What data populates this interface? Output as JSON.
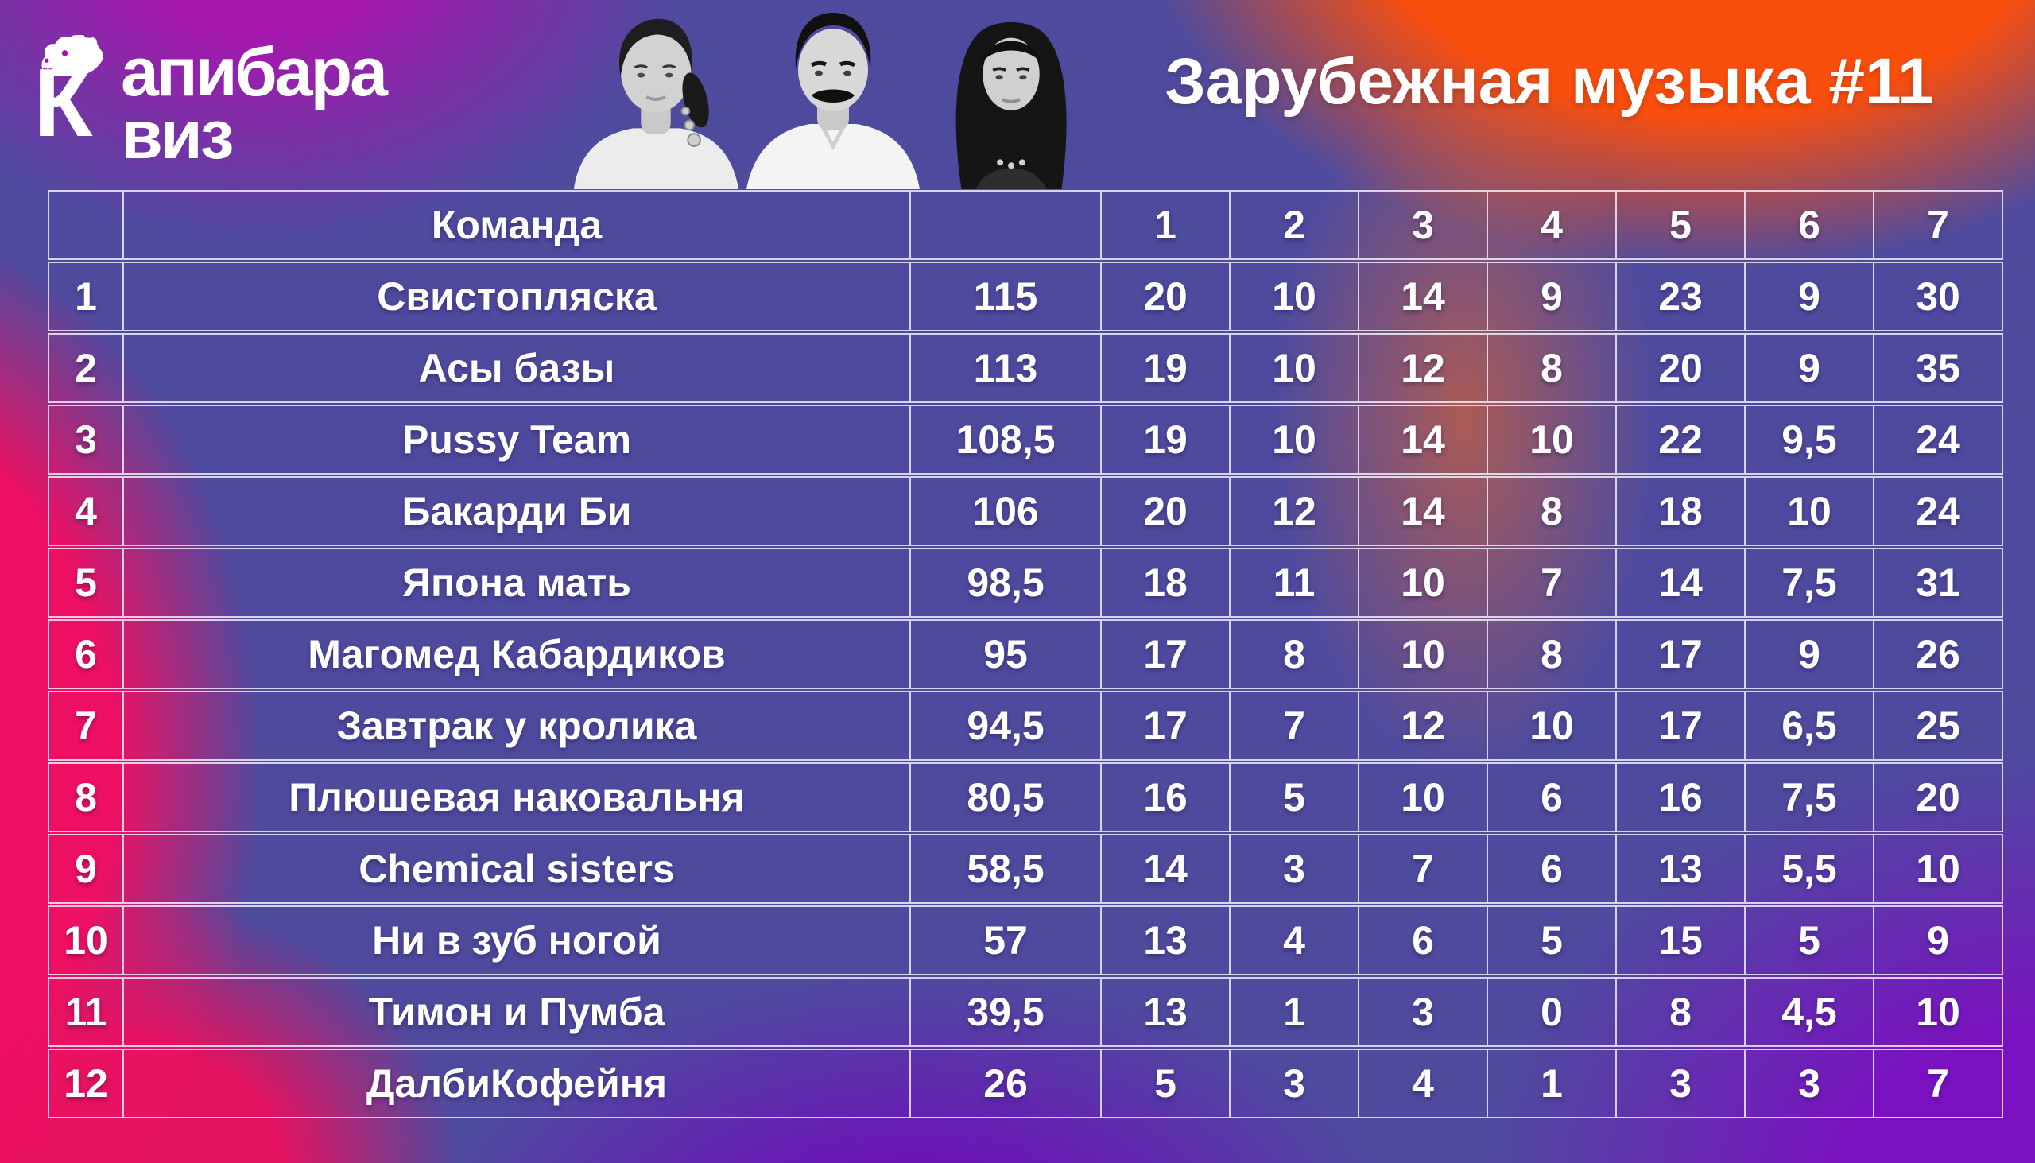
{
  "logo": {
    "big_letter": "К",
    "word_top": "апибара",
    "word_bottom": "виз"
  },
  "title": "Зарубежная музыка #11",
  "portraits": [
    {
      "label": "bw-portrait-woman-ponytail-earrings"
    },
    {
      "label": "bw-portrait-man-dark-hair-mustache"
    },
    {
      "label": "bw-portrait-woman-long-dark-hair"
    }
  ],
  "chart_data": {
    "type": "table",
    "title": "Зарубежная музыка #11",
    "header": [
      "",
      "Команда",
      "",
      "1",
      "2",
      "3",
      "4",
      "5",
      "6",
      "7"
    ],
    "rows": [
      {
        "rank": "1",
        "team": "Свистопляска",
        "total": "115",
        "scores": [
          "20",
          "10",
          "14",
          "9",
          "23",
          "9",
          "30"
        ]
      },
      {
        "rank": "2",
        "team": "Асы базы",
        "total": "113",
        "scores": [
          "19",
          "10",
          "12",
          "8",
          "20",
          "9",
          "35"
        ]
      },
      {
        "rank": "3",
        "team": "Pussy Team",
        "total": "108,5",
        "scores": [
          "19",
          "10",
          "14",
          "10",
          "22",
          "9,5",
          "24"
        ]
      },
      {
        "rank": "4",
        "team": "Бакарди Би",
        "total": "106",
        "scores": [
          "20",
          "12",
          "14",
          "8",
          "18",
          "10",
          "24"
        ]
      },
      {
        "rank": "5",
        "team": "Япона мать",
        "total": "98,5",
        "scores": [
          "18",
          "11",
          "10",
          "7",
          "14",
          "7,5",
          "31"
        ]
      },
      {
        "rank": "6",
        "team": "Магомед Кабардиков",
        "total": "95",
        "scores": [
          "17",
          "8",
          "10",
          "8",
          "17",
          "9",
          "26"
        ]
      },
      {
        "rank": "7",
        "team": "Завтрак у кролика",
        "total": "94,5",
        "scores": [
          "17",
          "7",
          "12",
          "10",
          "17",
          "6,5",
          "25"
        ]
      },
      {
        "rank": "8",
        "team": "Плюшевая наковальня",
        "total": "80,5",
        "scores": [
          "16",
          "5",
          "10",
          "6",
          "16",
          "7,5",
          "20"
        ]
      },
      {
        "rank": "9",
        "team": "Chemical sisters",
        "total": "58,5",
        "scores": [
          "14",
          "3",
          "7",
          "6",
          "13",
          "5,5",
          "10"
        ]
      },
      {
        "rank": "10",
        "team": "Ни в зуб ногой",
        "total": "57",
        "scores": [
          "13",
          "4",
          "6",
          "5",
          "15",
          "5",
          "9"
        ]
      },
      {
        "rank": "11",
        "team": "Тимон и Пумба",
        "total": "39,5",
        "scores": [
          "13",
          "1",
          "3",
          "0",
          "8",
          "4,5",
          "10"
        ]
      },
      {
        "rank": "12",
        "team": "ДалбиКофейня",
        "total": "26",
        "scores": [
          "5",
          "3",
          "4",
          "1",
          "3",
          "3",
          "7"
        ]
      }
    ]
  },
  "colors": {
    "orange": "#fa4e0d",
    "hot_pink": "#ee1062",
    "magenta_purple": "#a617ad",
    "indigo_base": "#4e4b9f",
    "purple": "#7a11c0",
    "text": "#ffffff",
    "grid_border": "rgba(244,242,255,0.82)"
  }
}
